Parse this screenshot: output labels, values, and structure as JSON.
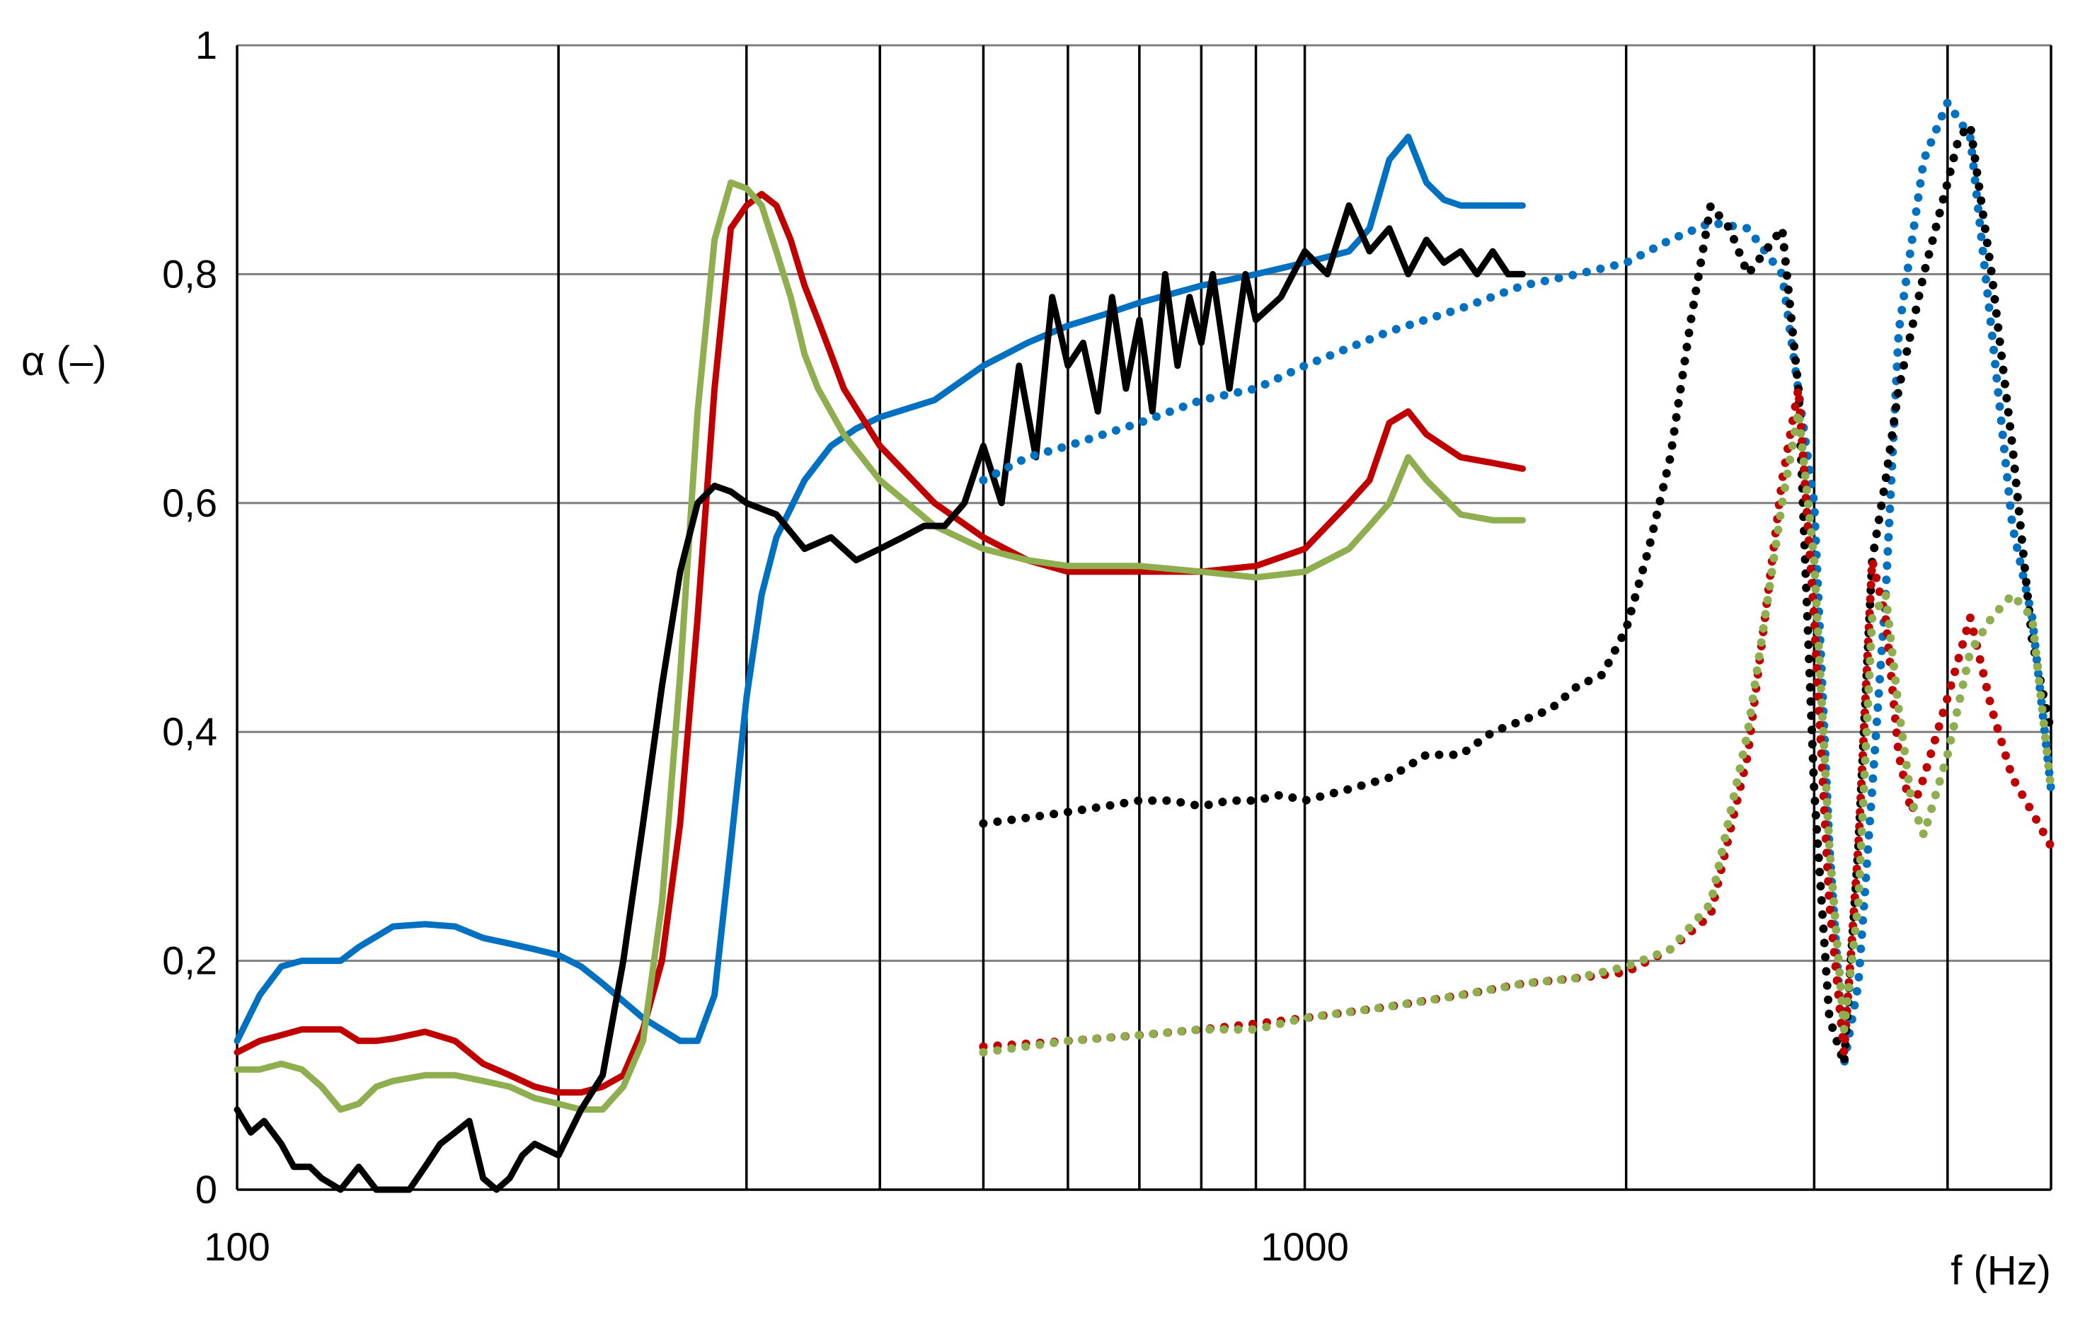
{
  "chart_data": {
    "type": "line",
    "xscale": "log",
    "xlim": [
      100,
      5000
    ],
    "ylim": [
      0,
      1
    ],
    "grid": true,
    "legend": "none",
    "xlabel": "f (Hz)",
    "ylabel": "α (–)",
    "x_ticks": [
      {
        "value": 100,
        "label": "100"
      },
      {
        "value": 1000,
        "label": "1000"
      }
    ],
    "y_ticks": [
      {
        "value": 0,
        "label": "0"
      },
      {
        "value": 0.2,
        "label": "0,2"
      },
      {
        "value": 0.4,
        "label": "0,4"
      },
      {
        "value": 0.6,
        "label": "0,6"
      },
      {
        "value": 0.8,
        "label": "0,8"
      },
      {
        "value": 1,
        "label": "1"
      }
    ],
    "vertical_gridlines": [
      200,
      300,
      400,
      500,
      600,
      700,
      800,
      900,
      1000,
      2000,
      3000,
      4000,
      5000
    ],
    "series": [
      {
        "color": "#0070C0",
        "style": "solid",
        "x": [
          100,
          105,
          110,
          115,
          120,
          125,
          130,
          140,
          150,
          160,
          170,
          180,
          190,
          200,
          210,
          220,
          240,
          260,
          270,
          280,
          290,
          300,
          310,
          320,
          340,
          360,
          380,
          400,
          450,
          500,
          550,
          600,
          650,
          700,
          800,
          900,
          1000,
          1100,
          1150,
          1200,
          1250,
          1300,
          1350,
          1400,
          1500,
          1600
        ],
        "y": [
          0.13,
          0.17,
          0.195,
          0.2,
          0.2,
          0.2,
          0.212,
          0.23,
          0.232,
          0.23,
          0.22,
          0.215,
          0.21,
          0.205,
          0.195,
          0.18,
          0.15,
          0.13,
          0.13,
          0.17,
          0.3,
          0.43,
          0.52,
          0.57,
          0.62,
          0.65,
          0.665,
          0.675,
          0.69,
          0.72,
          0.74,
          0.755,
          0.765,
          0.775,
          0.79,
          0.8,
          0.81,
          0.82,
          0.84,
          0.9,
          0.92,
          0.88,
          0.865,
          0.86,
          0.86,
          0.86
        ]
      },
      {
        "color": "#C00000",
        "style": "solid",
        "x": [
          100,
          105,
          110,
          115,
          120,
          125,
          130,
          135,
          140,
          150,
          160,
          170,
          180,
          190,
          200,
          210,
          220,
          230,
          240,
          250,
          260,
          270,
          280,
          290,
          300,
          310,
          320,
          330,
          340,
          350,
          360,
          370,
          400,
          450,
          500,
          550,
          600,
          650,
          700,
          800,
          900,
          1000,
          1100,
          1150,
          1200,
          1250,
          1300,
          1400,
          1500,
          1600
        ],
        "y": [
          0.12,
          0.13,
          0.135,
          0.14,
          0.14,
          0.14,
          0.13,
          0.13,
          0.132,
          0.138,
          0.13,
          0.11,
          0.1,
          0.09,
          0.085,
          0.085,
          0.09,
          0.1,
          0.14,
          0.2,
          0.32,
          0.5,
          0.7,
          0.84,
          0.86,
          0.87,
          0.86,
          0.83,
          0.79,
          0.76,
          0.73,
          0.7,
          0.65,
          0.6,
          0.57,
          0.55,
          0.54,
          0.54,
          0.54,
          0.54,
          0.545,
          0.56,
          0.6,
          0.62,
          0.67,
          0.68,
          0.66,
          0.64,
          0.635,
          0.63
        ]
      },
      {
        "color": "#8FAE4F",
        "style": "solid",
        "x": [
          100,
          105,
          110,
          115,
          120,
          125,
          130,
          135,
          140,
          150,
          160,
          170,
          180,
          190,
          200,
          210,
          220,
          230,
          240,
          250,
          260,
          270,
          280,
          290,
          300,
          310,
          320,
          330,
          340,
          350,
          370,
          400,
          450,
          500,
          550,
          600,
          650,
          700,
          800,
          900,
          1000,
          1100,
          1150,
          1200,
          1250,
          1300,
          1400,
          1500,
          1600
        ],
        "y": [
          0.105,
          0.105,
          0.11,
          0.105,
          0.09,
          0.07,
          0.075,
          0.09,
          0.095,
          0.1,
          0.1,
          0.095,
          0.09,
          0.08,
          0.075,
          0.07,
          0.07,
          0.09,
          0.13,
          0.25,
          0.45,
          0.68,
          0.83,
          0.88,
          0.875,
          0.86,
          0.82,
          0.78,
          0.73,
          0.7,
          0.66,
          0.62,
          0.58,
          0.56,
          0.55,
          0.545,
          0.545,
          0.545,
          0.54,
          0.535,
          0.54,
          0.56,
          0.58,
          0.6,
          0.64,
          0.62,
          0.59,
          0.585,
          0.585
        ]
      },
      {
        "color": "#000000",
        "style": "solid",
        "x": [
          100,
          103,
          106,
          110,
          113,
          117,
          120,
          125,
          130,
          135,
          140,
          145,
          150,
          155,
          160,
          165,
          170,
          175,
          180,
          185,
          190,
          200,
          210,
          220,
          230,
          240,
          250,
          260,
          270,
          280,
          290,
          300,
          320,
          340,
          360,
          380,
          400,
          420,
          440,
          460,
          480,
          500,
          520,
          540,
          560,
          580,
          600,
          620,
          640,
          660,
          680,
          700,
          720,
          740,
          760,
          780,
          800,
          820,
          850,
          880,
          900,
          950,
          1000,
          1050,
          1100,
          1150,
          1200,
          1250,
          1300,
          1350,
          1400,
          1450,
          1500,
          1550,
          1600
        ],
        "y": [
          0.07,
          0.05,
          0.06,
          0.04,
          0.02,
          0.02,
          0.01,
          0,
          0.02,
          0,
          0,
          0,
          0.02,
          0.04,
          0.05,
          0.06,
          0.01,
          0,
          0.01,
          0.03,
          0.04,
          0.03,
          0.07,
          0.1,
          0.2,
          0.32,
          0.44,
          0.54,
          0.6,
          0.615,
          0.61,
          0.6,
          0.59,
          0.56,
          0.57,
          0.55,
          0.56,
          0.57,
          0.58,
          0.58,
          0.6,
          0.65,
          0.6,
          0.72,
          0.64,
          0.78,
          0.72,
          0.74,
          0.68,
          0.78,
          0.7,
          0.76,
          0.68,
          0.8,
          0.72,
          0.78,
          0.74,
          0.8,
          0.7,
          0.8,
          0.76,
          0.78,
          0.82,
          0.8,
          0.86,
          0.82,
          0.84,
          0.8,
          0.83,
          0.81,
          0.82,
          0.8,
          0.82,
          0.8,
          0.8
        ]
      },
      {
        "color": "#0070C0",
        "style": "dotted",
        "x": [
          500,
          550,
          600,
          700,
          800,
          900,
          1000,
          1200,
          1400,
          1600,
          1800,
          2000,
          2200,
          2400,
          2600,
          2800,
          3000,
          3100,
          3200,
          3300,
          3400,
          3500,
          3600,
          3800,
          4000,
          4200,
          4400,
          4600,
          4800,
          5000
        ],
        "y": [
          0.62,
          0.64,
          0.65,
          0.67,
          0.69,
          0.7,
          0.72,
          0.75,
          0.77,
          0.79,
          0.8,
          0.81,
          0.83,
          0.845,
          0.84,
          0.8,
          0.6,
          0.3,
          0.11,
          0.18,
          0.35,
          0.52,
          0.75,
          0.9,
          0.95,
          0.92,
          0.75,
          0.58,
          0.5,
          0.35
        ]
      },
      {
        "color": "#000000",
        "style": "dotted",
        "x": [
          500,
          550,
          600,
          650,
          700,
          750,
          800,
          850,
          900,
          950,
          1000,
          1100,
          1200,
          1300,
          1400,
          1500,
          1600,
          1700,
          1800,
          1900,
          2000,
          2100,
          2200,
          2300,
          2400,
          2500,
          2600,
          2700,
          2800,
          2900,
          3000,
          3100,
          3200,
          3300,
          3400,
          3500,
          3600,
          3800,
          4000,
          4100,
          4200,
          4400,
          4600,
          4800,
          5000
        ],
        "y": [
          0.32,
          0.325,
          0.33,
          0.335,
          0.34,
          0.34,
          0.335,
          0.34,
          0.34,
          0.345,
          0.34,
          0.35,
          0.36,
          0.38,
          0.38,
          0.4,
          0.41,
          0.42,
          0.44,
          0.45,
          0.49,
          0.56,
          0.64,
          0.76,
          0.86,
          0.84,
          0.8,
          0.82,
          0.84,
          0.7,
          0.35,
          0.15,
          0.11,
          0.3,
          0.55,
          0.62,
          0.7,
          0.8,
          0.88,
          0.92,
          0.93,
          0.8,
          0.65,
          0.48,
          0.4
        ]
      },
      {
        "color": "#C00000",
        "style": "dotted",
        "x": [
          500,
          600,
          700,
          800,
          900,
          1000,
          1200,
          1400,
          1600,
          1800,
          2000,
          2200,
          2400,
          2600,
          2800,
          2900,
          3000,
          3100,
          3200,
          3300,
          3400,
          3500,
          3600,
          3700,
          3800,
          4000,
          4200,
          4400,
          4600,
          4800,
          5000
        ],
        "y": [
          0.125,
          0.13,
          0.135,
          0.14,
          0.145,
          0.15,
          0.16,
          0.17,
          0.18,
          0.185,
          0.19,
          0.21,
          0.24,
          0.38,
          0.62,
          0.7,
          0.5,
          0.25,
          0.12,
          0.3,
          0.55,
          0.5,
          0.38,
          0.33,
          0.36,
          0.43,
          0.5,
          0.42,
          0.36,
          0.33,
          0.3
        ]
      },
      {
        "color": "#8FAE4F",
        "style": "dotted",
        "x": [
          500,
          600,
          700,
          800,
          900,
          1000,
          1200,
          1400,
          1600,
          1800,
          2000,
          2200,
          2400,
          2600,
          2800,
          2900,
          3000,
          3100,
          3200,
          3300,
          3400,
          3500,
          3600,
          3700,
          3800,
          4000,
          4200,
          4400,
          4600,
          4800,
          5000
        ],
        "y": [
          0.12,
          0.13,
          0.135,
          0.14,
          0.14,
          0.15,
          0.16,
          0.17,
          0.18,
          0.185,
          0.195,
          0.21,
          0.25,
          0.4,
          0.6,
          0.68,
          0.55,
          0.3,
          0.14,
          0.25,
          0.5,
          0.52,
          0.42,
          0.34,
          0.31,
          0.38,
          0.47,
          0.5,
          0.52,
          0.5,
          0.35
        ]
      }
    ]
  }
}
